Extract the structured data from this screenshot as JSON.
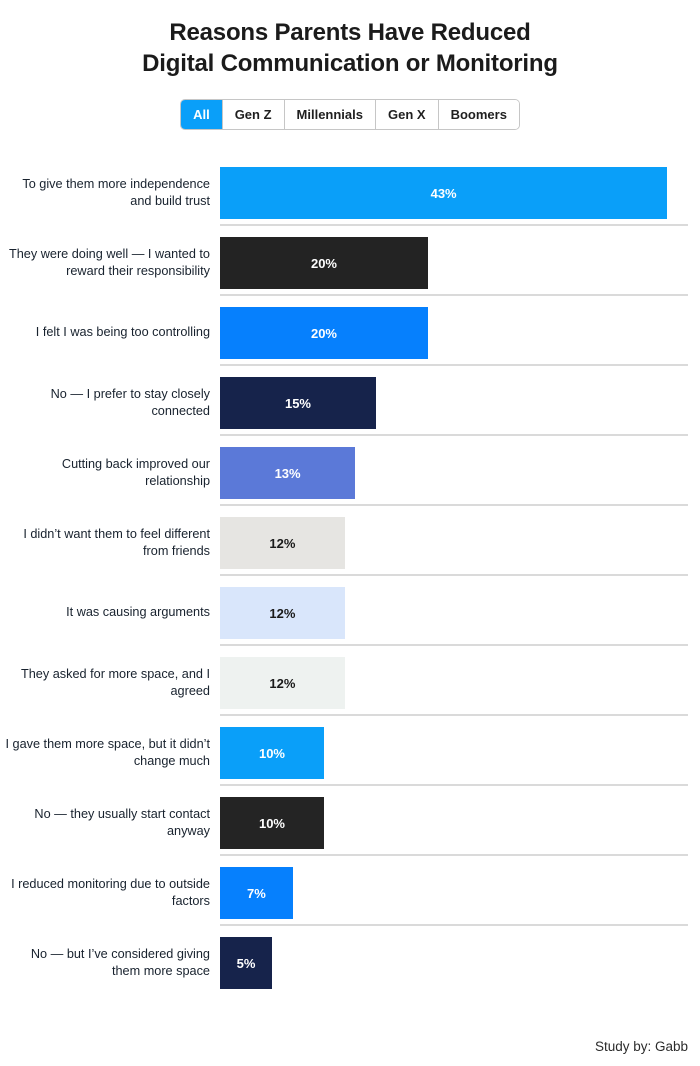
{
  "header": {
    "title_line1": "Reasons Parents Have Reduced",
    "title_line2": "Digital Communication or Monitoring"
  },
  "tabs": {
    "items": [
      {
        "label": "All",
        "active": true
      },
      {
        "label": "Gen Z",
        "active": false
      },
      {
        "label": "Millennials",
        "active": false
      },
      {
        "label": "Gen X",
        "active": false
      },
      {
        "label": "Boomers",
        "active": false
      }
    ],
    "active_color": "#0a9ff9"
  },
  "chart_data": {
    "type": "bar",
    "orientation": "horizontal",
    "title": "Reasons Parents Have Reduced Digital Communication or Monitoring",
    "xlabel": "",
    "ylabel": "",
    "xlim": [
      0,
      45
    ],
    "value_suffix": "%",
    "grid": "row-separator-lines",
    "legend": "none",
    "categories": [
      "To give them more independence and build trust",
      "They were doing well — I wanted to reward their responsibility",
      "I felt I was being too controlling",
      "No — I prefer to stay closely connected",
      "Cutting back improved our relationship",
      "I didn’t want them to feel different from friends",
      "It was causing arguments",
      "They asked for more space, and I agreed",
      "I gave them more space, but it didn’t change much",
      "No — they usually start contact anyway",
      "I reduced monitoring due to outside factors",
      "No — but I’ve considered giving them more space"
    ],
    "values": [
      43,
      20,
      20,
      15,
      13,
      12,
      12,
      12,
      10,
      10,
      7,
      5
    ],
    "value_labels": [
      "43%",
      "20%",
      "20%",
      "15%",
      "13%",
      "12%",
      "12%",
      "12%",
      "10%",
      "10%",
      "7%",
      "5%"
    ],
    "bar_colors": [
      "#0a9ff9",
      "#232323",
      "#0680fd",
      "#16234b",
      "#5b79d8",
      "#e6e5e2",
      "#d9e6fb",
      "#eef2f0",
      "#0a9ff9",
      "#242424",
      "#0680fd",
      "#16234b"
    ],
    "value_label_colors": [
      "#ffffff",
      "#ffffff",
      "#ffffff",
      "#ffffff",
      "#ffffff",
      "#1a1a1a",
      "#1a1a1a",
      "#1a1a1a",
      "#ffffff",
      "#ffffff",
      "#ffffff",
      "#ffffff"
    ]
  },
  "footer": {
    "credit": "Study by: Gabb"
  }
}
